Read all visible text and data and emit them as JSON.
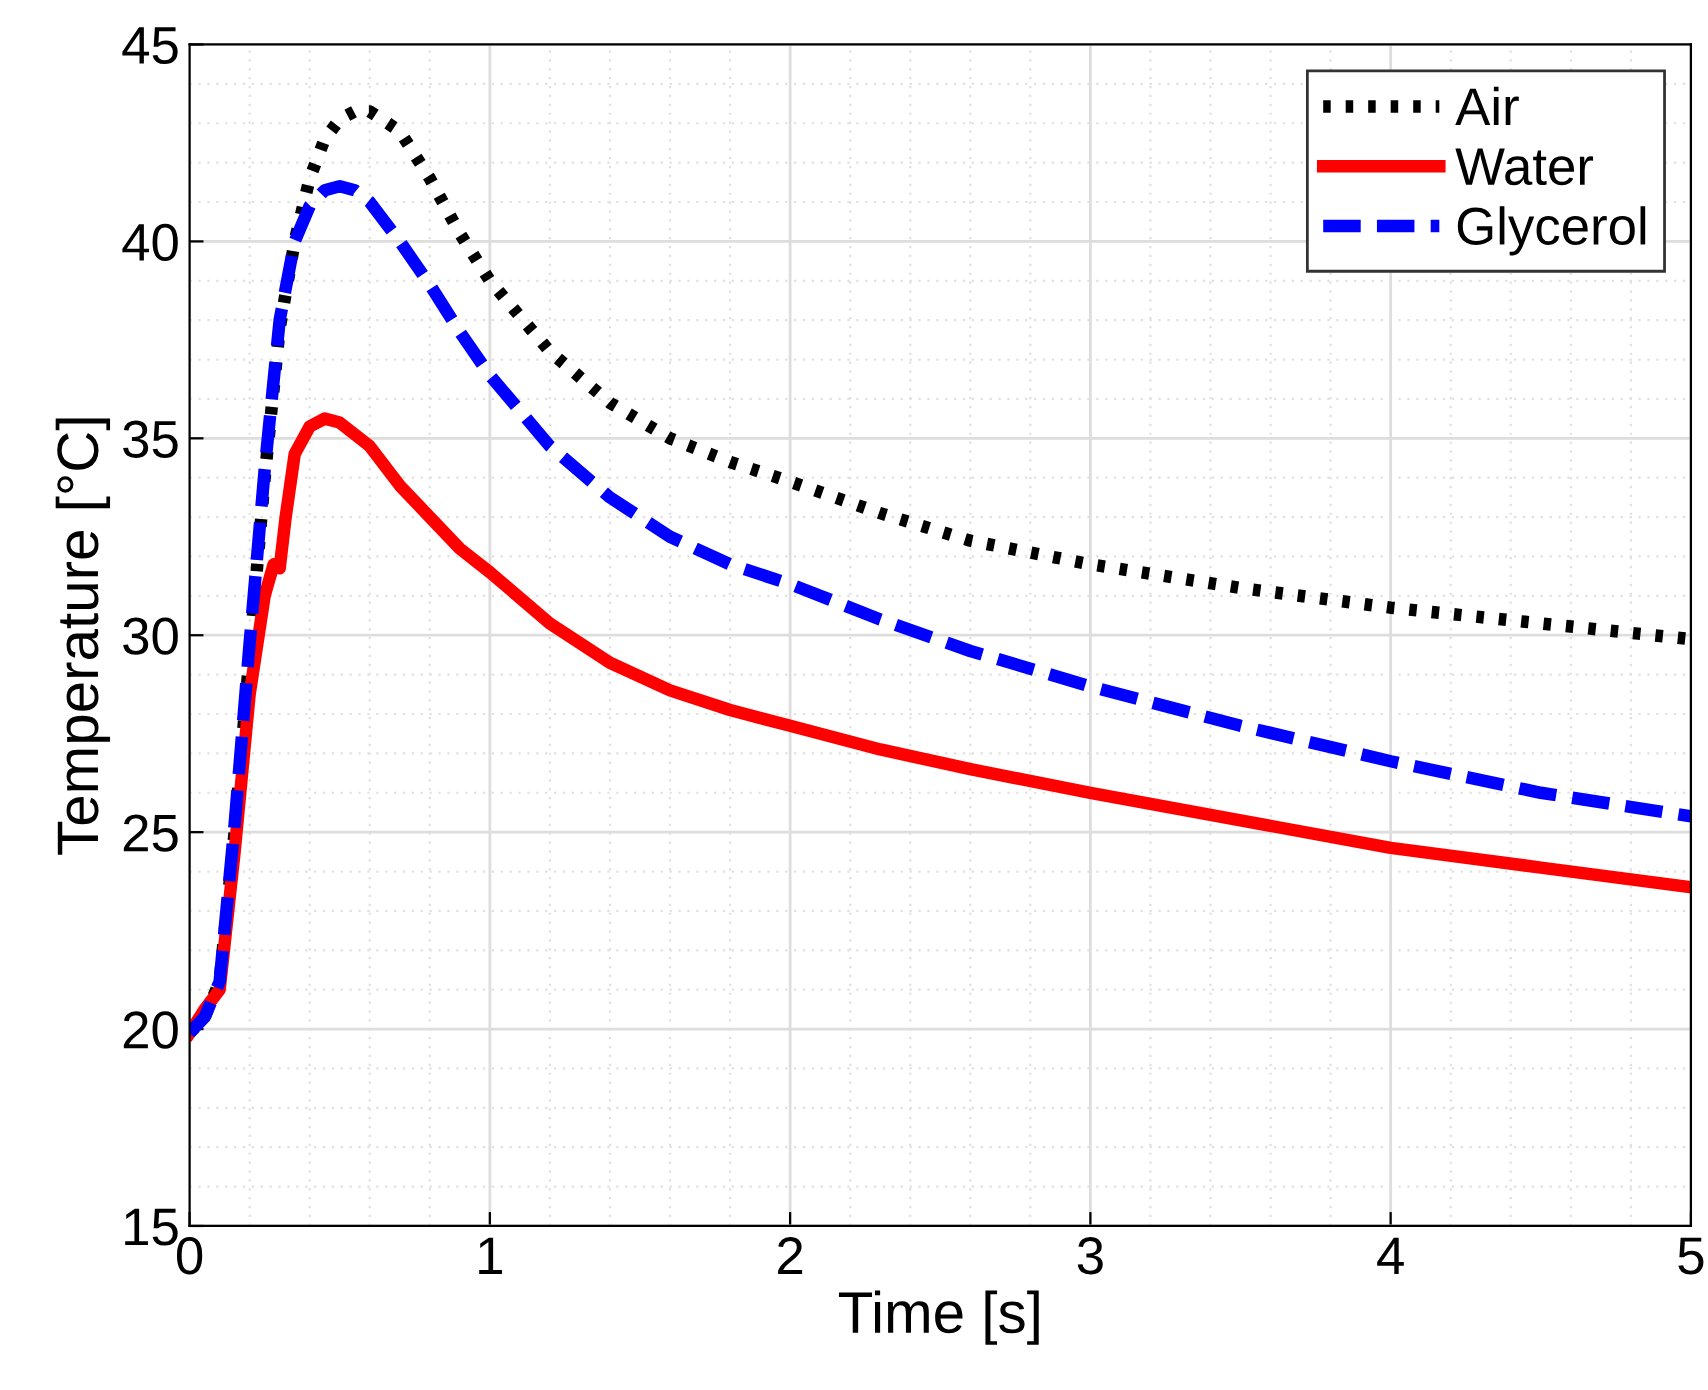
{
  "chart_data": {
    "type": "line",
    "xlabel": "Time [s]",
    "ylabel": "Temperature [°C]",
    "xlim": [
      0,
      5
    ],
    "ylim": [
      15,
      45
    ],
    "xticks": [
      0,
      1,
      2,
      3,
      4,
      5
    ],
    "yticks": [
      15,
      20,
      25,
      30,
      35,
      40,
      45
    ],
    "grid": true,
    "legend": "top right",
    "series": [
      {
        "name": "Air",
        "color": "#000000",
        "line_style": "dotted",
        "x": [
          0,
          0.05,
          0.1,
          0.15,
          0.2,
          0.25,
          0.3,
          0.35,
          0.4,
          0.45,
          0.5,
          0.55,
          0.6,
          0.7,
          0.8,
          0.9,
          1.0,
          1.2,
          1.4,
          1.6,
          1.8,
          2.0,
          2.3,
          2.6,
          3.0,
          3.5,
          4.0,
          4.5,
          5.0
        ],
        "values": [
          19.9,
          20.3,
          21.2,
          25.0,
          29.5,
          34.0,
          37.8,
          40.0,
          41.6,
          42.6,
          43.1,
          43.3,
          43.3,
          42.8,
          41.6,
          40.2,
          39.0,
          37.2,
          35.9,
          35.0,
          34.4,
          33.9,
          33.1,
          32.4,
          31.8,
          31.2,
          30.7,
          30.3,
          29.9
        ]
      },
      {
        "name": "Water",
        "color": "#ff0000",
        "line_style": "solid",
        "x": [
          0,
          0.05,
          0.1,
          0.15,
          0.2,
          0.25,
          0.28,
          0.3,
          0.32,
          0.35,
          0.4,
          0.45,
          0.5,
          0.6,
          0.7,
          0.8,
          0.9,
          1.0,
          1.2,
          1.4,
          1.6,
          1.8,
          2.0,
          2.3,
          2.6,
          3.0,
          3.5,
          4.0,
          4.5,
          5.0
        ],
        "values": [
          19.9,
          20.5,
          21.0,
          24.5,
          28.5,
          31.0,
          31.8,
          31.7,
          33.0,
          34.6,
          35.3,
          35.5,
          35.4,
          34.8,
          33.8,
          33.0,
          32.2,
          31.6,
          30.3,
          29.3,
          28.6,
          28.1,
          27.7,
          27.1,
          26.6,
          26.0,
          25.3,
          24.6,
          24.1,
          23.6
        ]
      },
      {
        "name": "Glycerol",
        "color": "#0000ff",
        "line_style": "dashed",
        "x": [
          0,
          0.05,
          0.1,
          0.15,
          0.2,
          0.25,
          0.3,
          0.35,
          0.4,
          0.45,
          0.5,
          0.55,
          0.6,
          0.7,
          0.8,
          0.9,
          1.0,
          1.2,
          1.4,
          1.6,
          1.8,
          2.0,
          2.3,
          2.6,
          3.0,
          3.5,
          4.0,
          4.5,
          5.0
        ],
        "values": [
          19.9,
          20.3,
          21.2,
          25.2,
          29.8,
          34.2,
          38.0,
          40.0,
          40.9,
          41.3,
          41.4,
          41.3,
          41.0,
          40.0,
          38.9,
          37.7,
          36.6,
          34.8,
          33.5,
          32.5,
          31.8,
          31.3,
          30.4,
          29.6,
          28.7,
          27.7,
          26.8,
          26.0,
          25.4
        ]
      }
    ]
  }
}
